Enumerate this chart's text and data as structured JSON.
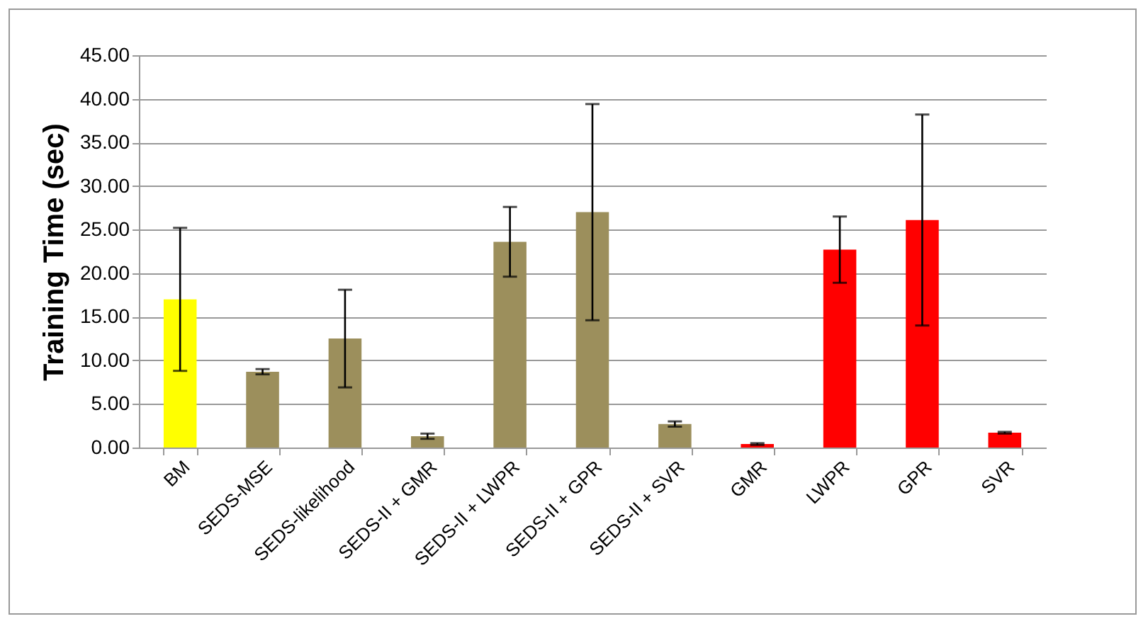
{
  "chart_data": {
    "type": "bar",
    "ylabel": "Training Time (sec)",
    "categories": [
      "BM",
      "SEDS-MSE",
      "SEDS-likelihood",
      "SEDS-II + GMR",
      "SEDS-II + LWPR",
      "SEDS-II + GPR",
      "SEDS-II + SVR",
      "GMR",
      "LWPR",
      "GPR",
      "SVR"
    ],
    "values": [
      17.0,
      8.7,
      12.5,
      1.3,
      23.6,
      27.0,
      2.7,
      0.4,
      22.7,
      26.1,
      1.7
    ],
    "colors": [
      "#ffff00",
      "#9c8f5c",
      "#9c8f5c",
      "#9c8f5c",
      "#9c8f5c",
      "#9c8f5c",
      "#9c8f5c",
      "#ff0000",
      "#ff0000",
      "#ff0000",
      "#ff0000"
    ],
    "errors": [
      8.2,
      0.3,
      5.6,
      0.3,
      4.0,
      12.4,
      0.3,
      0.1,
      3.8,
      12.1,
      0.1
    ],
    "ylim": [
      0,
      45
    ],
    "yticks": [
      {
        "value": 0,
        "label": "0.00"
      },
      {
        "value": 5,
        "label": "5.00"
      },
      {
        "value": 10,
        "label": "10.00"
      },
      {
        "value": 15,
        "label": "15.00"
      },
      {
        "value": 20,
        "label": "20.00"
      },
      {
        "value": 25,
        "label": "25.00"
      },
      {
        "value": 30,
        "label": "30.00"
      },
      {
        "value": 35,
        "label": "35.00"
      },
      {
        "value": 40,
        "label": "40.00"
      },
      {
        "value": 45,
        "label": "45.00"
      }
    ],
    "grid": "y"
  }
}
